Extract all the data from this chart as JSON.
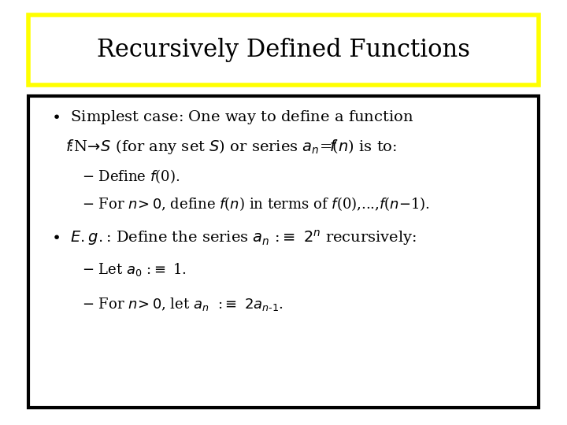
{
  "title": "Recursively Defined Functions",
  "title_box_color": "#FFFF00",
  "content_box_color": "#000000",
  "background_color": "#FFFFFF",
  "title_fontsize": 22,
  "body_fontsize": 14,
  "sub_fontsize": 13
}
